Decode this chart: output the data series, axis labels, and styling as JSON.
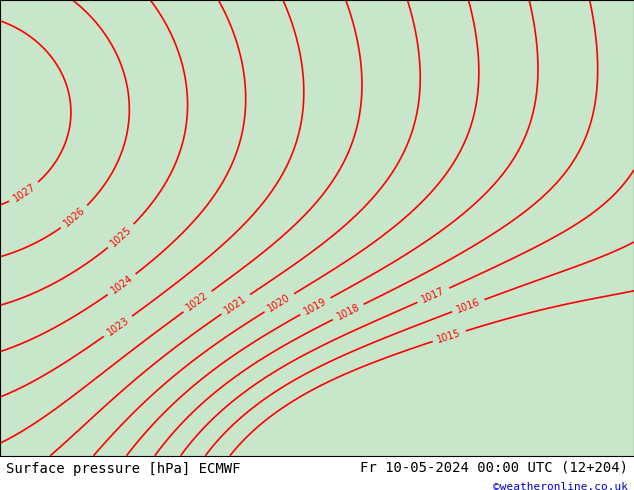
{
  "title_left": "Surface pressure [hPa] ECMWF",
  "title_right": "Fr 10-05-2024 00:00 UTC (12+204)",
  "copyright": "©weatheronline.co.uk",
  "background_color": "#ffffff",
  "map_bg_color": "#c8e6c9",
  "sea_color": "#d0d0d0",
  "contour_color": "#ff0000",
  "border_color": "#000000",
  "label_fontsize": 9,
  "title_fontsize": 10,
  "copyright_color": "#0000cc",
  "pressure_levels": [
    1015,
    1016,
    1017,
    1018,
    1019,
    1020,
    1021,
    1022,
    1023,
    1024,
    1025,
    1026,
    1027
  ],
  "lon_min": 3.0,
  "lon_max": 18.0,
  "lat_min": 46.5,
  "lat_max": 56.5
}
